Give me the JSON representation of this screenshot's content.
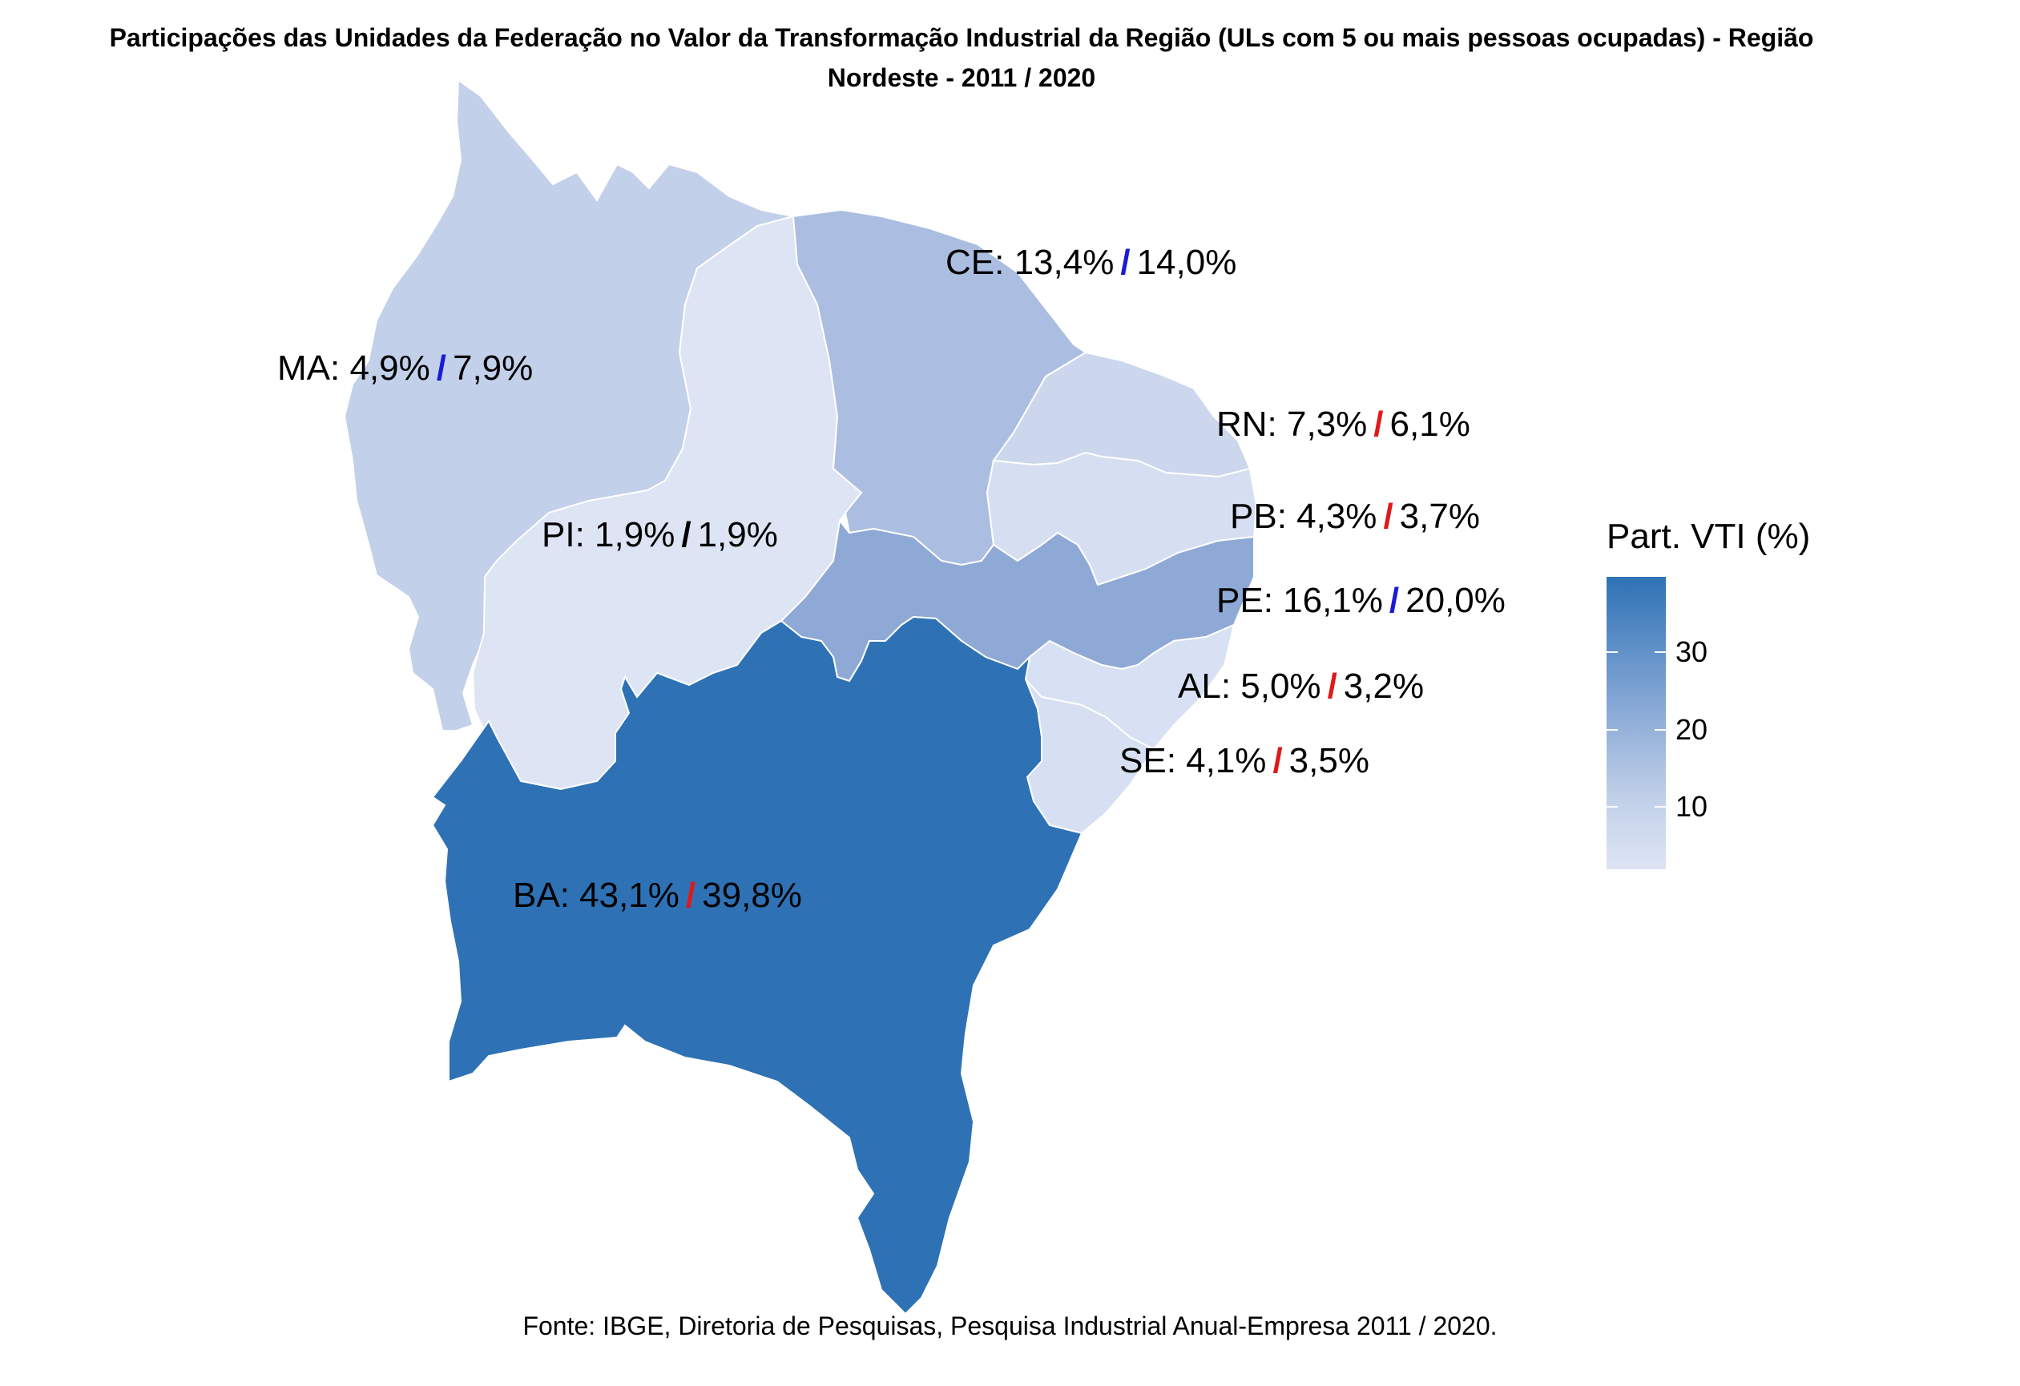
{
  "title_lines": [
    "Participações das Unidades da Federação no Valor da Transformação Industrial da Região (ULs com 5 ou mais pessoas ocupadas) - Região",
    "Nordeste - 2011 / 2020"
  ],
  "chart_data": {
    "type": "choropleth",
    "variable": "Part. VTI (%)",
    "years": [
      "2011",
      "2020"
    ],
    "legend": {
      "title": "Part. VTI (%)",
      "ticks": [
        30,
        20,
        10
      ],
      "range": [
        1.9,
        39.8
      ],
      "color_low": "#dde5f4",
      "color_high": "#2e72b5"
    },
    "regions": [
      {
        "code": "MA",
        "v2011": "4,9%",
        "v2020": "7,9%",
        "value2020": 7.9,
        "trend": "up",
        "fill": "#c3d0ea"
      },
      {
        "code": "PI",
        "v2011": "1,9%",
        "v2020": "1,9%",
        "value2020": 1.9,
        "trend": "same",
        "fill": "#dde4f4"
      },
      {
        "code": "CE",
        "v2011": "13,4%",
        "v2020": "14,0%",
        "value2020": 14.0,
        "trend": "up",
        "fill": "#abbee1"
      },
      {
        "code": "RN",
        "v2011": "7,3%",
        "v2020": "6,1%",
        "value2020": 6.1,
        "trend": "down",
        "fill": "#ccd7ee"
      },
      {
        "code": "PB",
        "v2011": "4,3%",
        "v2020": "3,7%",
        "value2020": 3.7,
        "trend": "down",
        "fill": "#d6def2"
      },
      {
        "code": "PE",
        "v2011": "16,1%",
        "v2020": "20,0%",
        "value2020": 20.0,
        "trend": "up",
        "fill": "#8fa9d6"
      },
      {
        "code": "AL",
        "v2011": "5,0%",
        "v2020": "3,2%",
        "value2020": 3.2,
        "trend": "down",
        "fill": "#d8e0f3"
      },
      {
        "code": "SE",
        "v2011": "4,1%",
        "v2020": "3,5%",
        "value2020": 3.5,
        "trend": "down",
        "fill": "#d7dff2"
      },
      {
        "code": "BA",
        "v2011": "43,1%",
        "v2020": "39,8%",
        "value2020": 39.8,
        "trend": "down",
        "fill": "#2e72b5"
      }
    ],
    "separator": "/",
    "trend_colors": {
      "up": "#1a1ad6",
      "down": "#e01818",
      "same": "#000000"
    }
  },
  "source": "Fonte: IBGE, Diretoria de Pesquisas, Pesquisa Industrial Anual-Empresa 2011 / 2020."
}
